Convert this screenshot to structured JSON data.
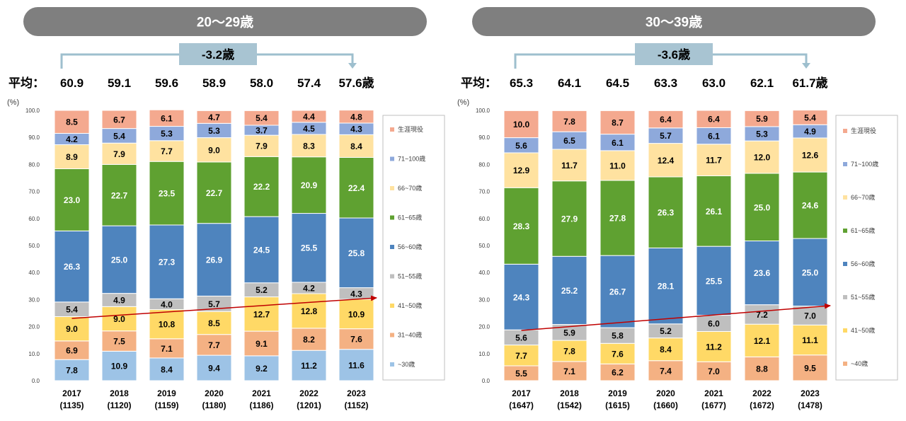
{
  "unit_label": "(%)",
  "average_label": "平均：",
  "average_suffix": "歳",
  "colors": {
    "title_bg": "#7f7f7f",
    "title_text": "#ffffff",
    "diff_box": "#a8c4d2",
    "diff_line": "#9ebfce",
    "trend": "#c00000",
    "axis_text": "#404040",
    "legend_border": "#bfbfbf"
  },
  "chart_data": [
    {
      "type": "bar",
      "stacked": true,
      "title": "20〜29歳",
      "diff_label": "-3.2歳",
      "ylim": [
        0,
        100
      ],
      "yticks": [
        "0.0",
        "10.0",
        "20.0",
        "30.0",
        "40.0",
        "50.0",
        "60.0",
        "70.0",
        "80.0",
        "90.0",
        "100.0"
      ],
      "categories": [
        "2017",
        "2018",
        "2019",
        "2020",
        "2021",
        "2022",
        "2023"
      ],
      "category_counts": [
        "(1135)",
        "(1120)",
        "(1159)",
        "(1180)",
        "(1186)",
        "(1201)",
        "(1152)"
      ],
      "averages": [
        "60.9",
        "59.1",
        "59.6",
        "58.9",
        "58.0",
        "57.4",
        "57.6"
      ],
      "series": [
        {
          "name": "~30歳",
          "color": "#9dc3e6",
          "text_color": "#000000",
          "values": [
            7.8,
            10.9,
            8.4,
            9.4,
            9.2,
            11.2,
            11.6
          ]
        },
        {
          "name": "31~40歳",
          "color": "#f4b183",
          "text_color": "#000000",
          "values": [
            6.9,
            7.5,
            7.1,
            7.7,
            9.1,
            8.2,
            7.6
          ]
        },
        {
          "name": "41~50歳",
          "color": "#ffd966",
          "text_color": "#000000",
          "values": [
            9.0,
            9.0,
            10.8,
            8.5,
            12.7,
            12.8,
            10.9
          ]
        },
        {
          "name": "51~55歳",
          "color": "#bfbfbf",
          "text_color": "#000000",
          "values": [
            5.4,
            4.9,
            4.0,
            5.7,
            5.2,
            4.2,
            4.3
          ]
        },
        {
          "name": "56~60歳",
          "color": "#4e84be",
          "text_color": "#ffffff",
          "values": [
            26.3,
            25.0,
            27.3,
            26.9,
            24.5,
            25.5,
            25.8
          ]
        },
        {
          "name": "61~65歳",
          "color": "#5fa131",
          "text_color": "#ffffff",
          "values": [
            23.0,
            22.7,
            23.5,
            22.7,
            22.2,
            20.9,
            22.4
          ]
        },
        {
          "name": "66~70歳",
          "color": "#ffe2a0",
          "text_color": "#000000",
          "values": [
            8.9,
            7.9,
            7.7,
            9.0,
            7.9,
            8.3,
            8.4
          ]
        },
        {
          "name": "71~100歳",
          "color": "#8ea9db",
          "text_color": "#000000",
          "values": [
            4.2,
            5.4,
            5.3,
            5.3,
            3.7,
            4.5,
            4.3
          ]
        },
        {
          "name": "生涯現役",
          "color": "#f4a98f",
          "text_color": "#000000",
          "values": [
            8.5,
            6.7,
            6.1,
            4.7,
            5.4,
            4.4,
            4.8
          ]
        }
      ],
      "trend_series": "41~50歳"
    },
    {
      "type": "bar",
      "stacked": true,
      "title": "30〜39歳",
      "diff_label": "-3.6歳",
      "ylim": [
        0,
        100
      ],
      "yticks": [
        "0.0",
        "10.0",
        "20.0",
        "30.0",
        "40.0",
        "50.0",
        "60.0",
        "70.0",
        "80.0",
        "90.0",
        "100.0"
      ],
      "categories": [
        "2017",
        "2018",
        "2019",
        "2020",
        "2021",
        "2022",
        "2023"
      ],
      "category_counts": [
        "(1647)",
        "(1542)",
        "(1615)",
        "(1660)",
        "(1677)",
        "(1672)",
        "(1478)"
      ],
      "averages": [
        "65.3",
        "64.1",
        "64.5",
        "63.3",
        "63.0",
        "62.1",
        "61.7"
      ],
      "series": [
        {
          "name": "~40歳",
          "color": "#f4b183",
          "text_color": "#000000",
          "values": [
            5.5,
            7.1,
            6.2,
            7.4,
            7.0,
            8.8,
            9.5
          ]
        },
        {
          "name": "41~50歳",
          "color": "#ffd966",
          "text_color": "#000000",
          "values": [
            7.7,
            7.8,
            7.6,
            8.4,
            11.2,
            12.1,
            11.1
          ]
        },
        {
          "name": "51~55歳",
          "color": "#bfbfbf",
          "text_color": "#000000",
          "values": [
            5.6,
            5.9,
            5.8,
            5.2,
            6.0,
            7.2,
            7.0
          ]
        },
        {
          "name": "56~60歳",
          "color": "#4e84be",
          "text_color": "#ffffff",
          "values": [
            24.3,
            25.2,
            26.7,
            28.1,
            25.5,
            23.6,
            25.0
          ]
        },
        {
          "name": "61~65歳",
          "color": "#5fa131",
          "text_color": "#ffffff",
          "values": [
            28.3,
            27.9,
            27.8,
            26.3,
            26.1,
            25.0,
            24.6
          ]
        },
        {
          "name": "66~70歳",
          "color": "#ffe2a0",
          "text_color": "#000000",
          "values": [
            12.9,
            11.7,
            11.0,
            12.4,
            11.7,
            12.0,
            12.6
          ]
        },
        {
          "name": "71~100歳",
          "color": "#8ea9db",
          "text_color": "#000000",
          "values": [
            5.6,
            6.5,
            6.1,
            5.7,
            6.1,
            5.3,
            4.9
          ]
        },
        {
          "name": "生涯現役",
          "color": "#f4a98f",
          "text_color": "#000000",
          "values": [
            10.0,
            7.8,
            8.7,
            6.4,
            6.4,
            5.9,
            5.4
          ]
        }
      ],
      "trend_series": "51~55歳"
    }
  ]
}
